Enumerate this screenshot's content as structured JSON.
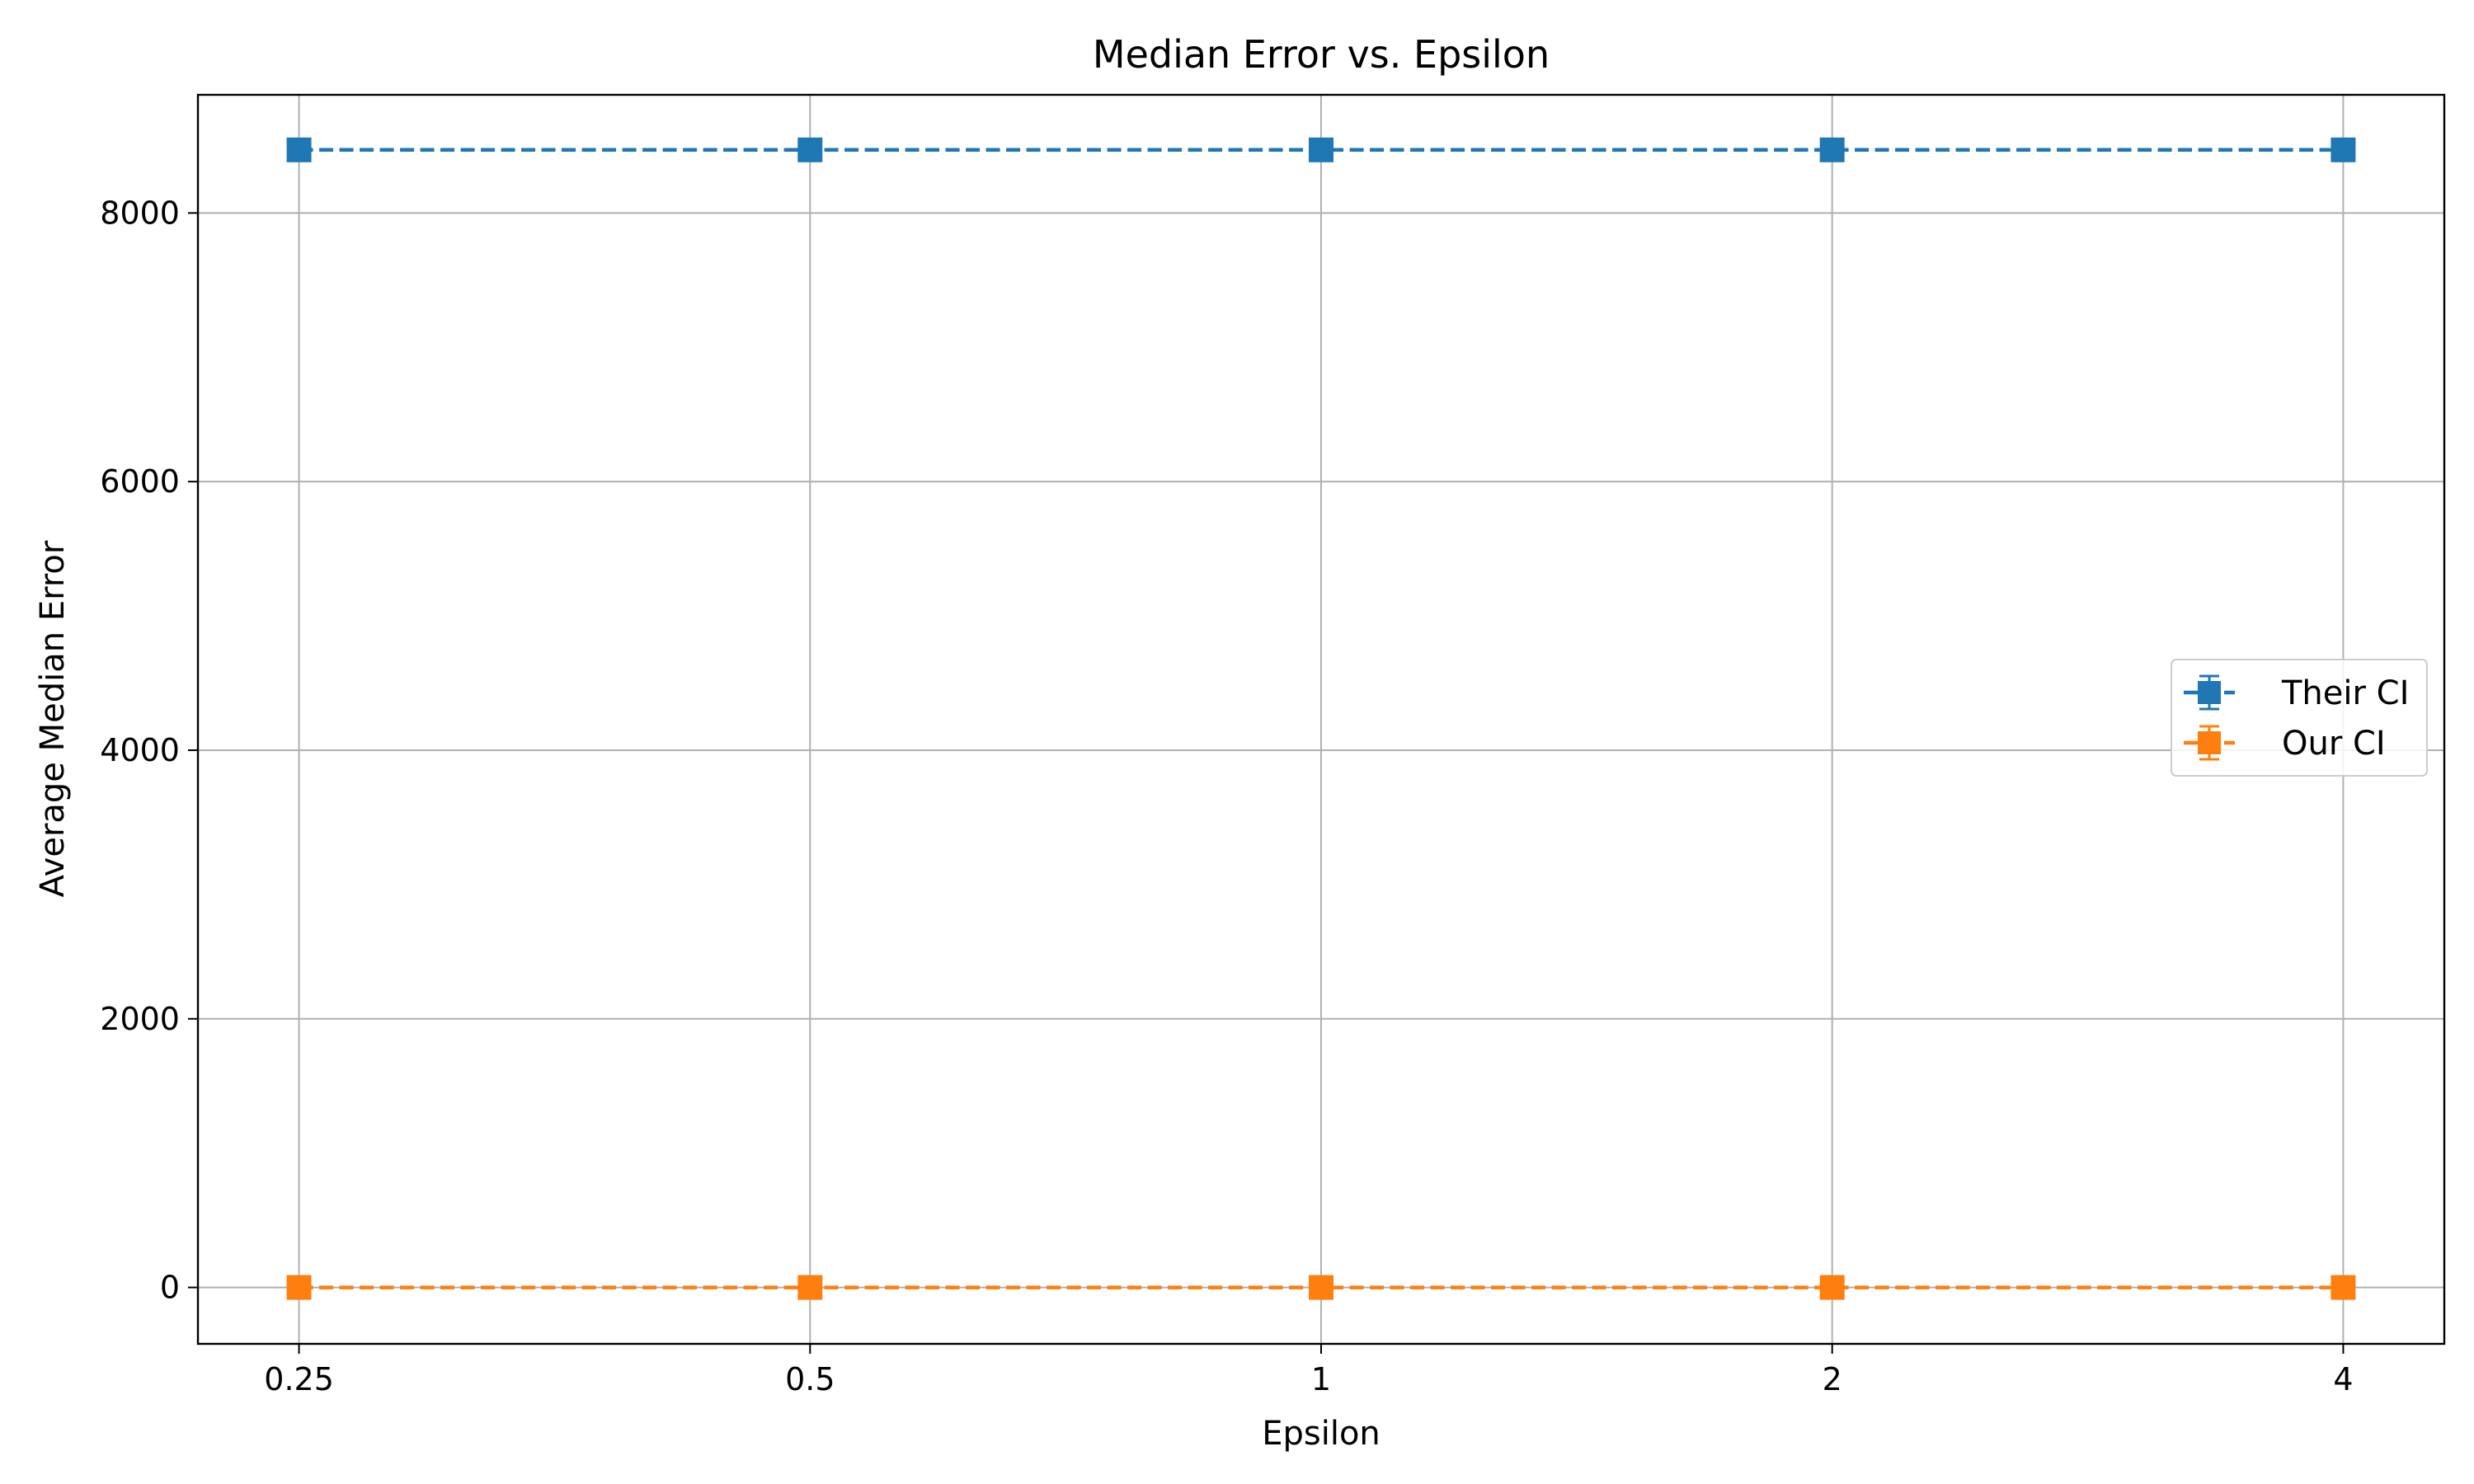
{
  "chart_data": {
    "type": "line",
    "title": "Median Error vs. Epsilon",
    "xlabel": "Epsilon",
    "ylabel": "Average Median Error",
    "x": [
      0.25,
      0.5,
      1,
      2,
      4
    ],
    "x_tick_labels": [
      "0.25",
      "0.5",
      "1",
      "2",
      "4"
    ],
    "x_scale": "log2",
    "ylim": [
      -420,
      8880
    ],
    "y_ticks": [
      0,
      2000,
      4000,
      6000,
      8000
    ],
    "grid": true,
    "legend_position": "center-right",
    "series": [
      {
        "name": "Their CI",
        "color": "#1f77b4",
        "marker": "square",
        "line_style": "dashed",
        "values": [
          8470,
          8470,
          8470,
          8470,
          8470
        ]
      },
      {
        "name": "Our CI",
        "color": "#ff7f0e",
        "marker": "square",
        "line_style": "dashed",
        "values": [
          0,
          0,
          0,
          0,
          0
        ]
      }
    ]
  }
}
